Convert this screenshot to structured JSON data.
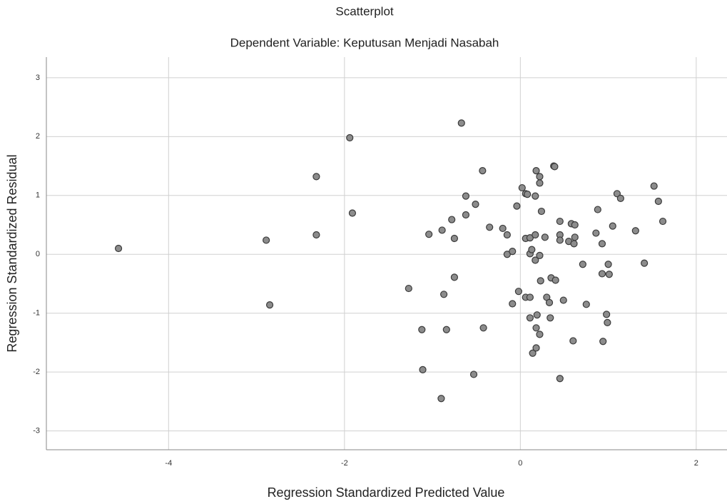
{
  "chart_data": {
    "type": "scatter",
    "title": "Scatterplot",
    "subtitle": "Dependent Variable: Keputusan Menjadi Nasabah",
    "x_label": "Regression Standardized Predicted Value",
    "y_label": "Regression Standardized Residual",
    "xlim": [
      -5.39,
      2.35
    ],
    "ylim": [
      -3.32,
      3.35
    ],
    "xticks": [
      -4,
      -2,
      0,
      2
    ],
    "yticks": [
      -3,
      -2,
      -1,
      0,
      1,
      2,
      3
    ],
    "grid": true,
    "color": "#8c8c8c",
    "x": [
      -4.57,
      -2.89,
      -2.85,
      -2.32,
      -2.32,
      -1.94,
      -1.91,
      -1.27,
      -1.12,
      -1.11,
      -1.04,
      -0.9,
      -0.89,
      -0.87,
      -0.84,
      -0.78,
      -0.75,
      -0.75,
      -0.67,
      -0.62,
      -0.62,
      -0.53,
      -0.51,
      -0.43,
      -0.42,
      -0.35,
      -0.2,
      -0.15,
      -0.15,
      -0.09,
      -0.09,
      -0.04,
      -0.02,
      0.02,
      0.06,
      0.08,
      0.06,
      0.06,
      0.11,
      0.11,
      0.11,
      0.11,
      0.13,
      0.14,
      0.17,
      0.17,
      0.17,
      0.18,
      0.18,
      0.18,
      0.19,
      0.22,
      0.22,
      0.22,
      0.22,
      0.23,
      0.24,
      0.28,
      0.3,
      0.33,
      0.34,
      0.35,
      0.38,
      0.39,
      0.4,
      0.45,
      0.45,
      0.45,
      0.45,
      0.49,
      0.55,
      0.58,
      0.6,
      0.61,
      0.62,
      0.62,
      0.71,
      0.75,
      0.86,
      0.88,
      0.93,
      0.93,
      0.94,
      0.98,
      0.99,
      1.0,
      1.01,
      1.05,
      1.1,
      1.14,
      1.31,
      1.41,
      1.52,
      1.57,
      1.62
    ],
    "values": [
      0.1,
      0.24,
      -0.86,
      1.32,
      0.33,
      1.98,
      0.7,
      -0.58,
      -1.28,
      -1.96,
      0.34,
      -2.45,
      0.41,
      -0.68,
      -1.28,
      0.59,
      -0.39,
      0.27,
      2.23,
      0.99,
      0.67,
      -2.04,
      0.85,
      1.42,
      -1.25,
      0.46,
      0.44,
      0.33,
      0.0,
      0.05,
      -0.84,
      0.82,
      -0.63,
      1.13,
      1.03,
      1.02,
      0.27,
      -0.73,
      0.28,
      0.01,
      -0.73,
      -1.08,
      0.08,
      -1.68,
      0.33,
      0.99,
      -0.1,
      1.42,
      -1.25,
      -1.59,
      -1.03,
      1.32,
      1.21,
      -0.02,
      -1.36,
      -0.45,
      0.73,
      0.29,
      -0.73,
      -0.82,
      -1.08,
      -0.4,
      1.5,
      1.49,
      -0.44,
      0.56,
      0.33,
      0.24,
      -2.11,
      -0.78,
      0.22,
      0.52,
      -1.47,
      0.18,
      0.29,
      0.5,
      -0.17,
      -0.85,
      0.36,
      0.76,
      0.18,
      -0.33,
      -1.48,
      -1.02,
      -1.16,
      -0.17,
      -0.34,
      0.48,
      1.03,
      0.95,
      0.4,
      -0.15,
      1.16,
      0.9,
      0.56
    ]
  }
}
